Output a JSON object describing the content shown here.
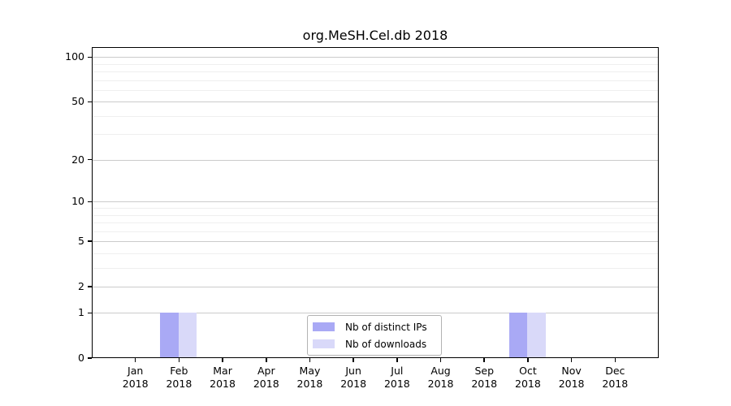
{
  "chart_data": {
    "type": "bar",
    "title": "org.MeSH.Cel.db 2018",
    "categories": [
      "Jan",
      "Feb",
      "Mar",
      "Apr",
      "May",
      "Jun",
      "Jul",
      "Aug",
      "Sep",
      "Oct",
      "Nov",
      "Dec"
    ],
    "category_year": "2018",
    "series": [
      {
        "name": "Nb of distinct IPs",
        "color": "#a9a9f5",
        "values": [
          0,
          1,
          0,
          0,
          0,
          0,
          0,
          0,
          0,
          1,
          0,
          0
        ]
      },
      {
        "name": "Nb of downloads",
        "color": "#d9d9f9",
        "values": [
          0,
          1,
          0,
          0,
          0,
          0,
          0,
          0,
          0,
          1,
          0,
          0
        ]
      }
    ],
    "xlabel": "",
    "ylabel": "",
    "yscale": "log1p",
    "ylim": [
      0,
      117
    ],
    "ytick_labels": [
      "0",
      "1",
      "2",
      "5",
      "10",
      "20",
      "50",
      "100"
    ],
    "yticks": [
      0,
      1,
      2,
      5,
      10,
      20,
      50,
      100
    ],
    "minor_gridlines": [
      3,
      4,
      6,
      7,
      8,
      9,
      30,
      40,
      60,
      70,
      80,
      90
    ],
    "grid": "horizontal",
    "legend_position": "bottom-center"
  },
  "colors": {
    "axis": "#000000",
    "major_grid": "#cbcbcb",
    "minor_grid": "#efefef",
    "background": "#ffffff"
  }
}
